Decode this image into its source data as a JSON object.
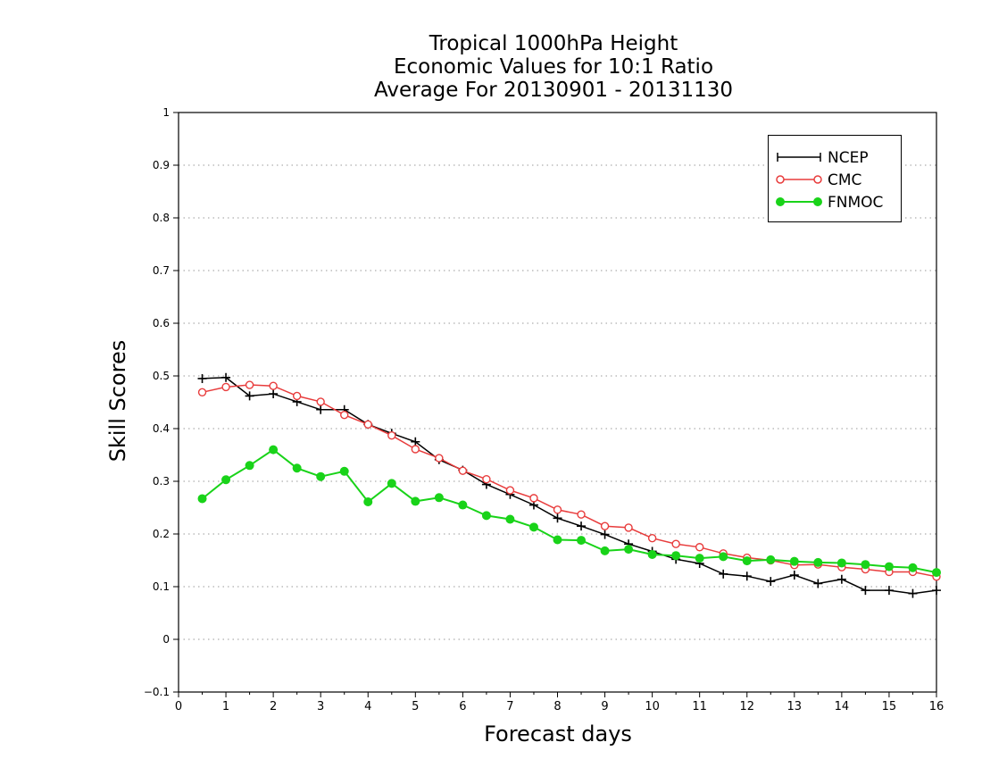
{
  "chart_data": {
    "type": "line",
    "title": [
      "Tropical 1000hPa Height",
      "Economic Values for 10:1 Ratio",
      "Average For 20130901 - 20131130"
    ],
    "xlabel": "Forecast days",
    "ylabel": "Skill Scores",
    "xlim": [
      0,
      16
    ],
    "ylim": [
      -0.1,
      1
    ],
    "xticks": [
      "0",
      "1",
      "2",
      "3",
      "4",
      "5",
      "6",
      "7",
      "8",
      "9",
      "10",
      "11",
      "12",
      "13",
      "14",
      "15",
      "16"
    ],
    "yticks": [
      "−0.1",
      "0",
      "0.1",
      "0.2",
      "0.3",
      "0.4",
      "0.5",
      "0.6",
      "0.7",
      "0.8",
      "0.9",
      "1"
    ],
    "grid": "horizontal dotted",
    "legend_position": "top-right",
    "x": [
      0.5,
      1,
      1.5,
      2,
      2.5,
      3,
      3.5,
      4,
      4.5,
      5,
      5.5,
      6,
      6.5,
      7,
      7.5,
      8,
      8.5,
      9,
      9.5,
      10,
      10.5,
      11,
      11.5,
      12,
      12.5,
      13,
      13.5,
      14,
      14.5,
      15,
      15.5,
      16
    ],
    "series": [
      {
        "name": "NCEP",
        "color": "#000000",
        "marker": "plus",
        "values": [
          0.495,
          0.497,
          0.462,
          0.466,
          0.451,
          0.436,
          0.436,
          0.408,
          0.391,
          0.375,
          0.341,
          0.321,
          0.294,
          0.275,
          0.255,
          0.23,
          0.215,
          0.199,
          0.181,
          0.167,
          0.152,
          0.144,
          0.124,
          0.12,
          0.11,
          0.122,
          0.106,
          0.114,
          0.093,
          0.093,
          0.087,
          0.093
        ]
      },
      {
        "name": "CMC",
        "color": "#e83c3c",
        "marker": "open-circle",
        "values": [
          0.469,
          0.479,
          0.483,
          0.481,
          0.462,
          0.451,
          0.426,
          0.408,
          0.387,
          0.361,
          0.344,
          0.32,
          0.304,
          0.283,
          0.268,
          0.246,
          0.237,
          0.215,
          0.212,
          0.192,
          0.181,
          0.175,
          0.163,
          0.155,
          0.15,
          0.141,
          0.142,
          0.137,
          0.133,
          0.128,
          0.128,
          0.119
        ]
      },
      {
        "name": "FNMOC",
        "color": "#19d319",
        "marker": "filled-circle",
        "values": [
          0.267,
          0.303,
          0.33,
          0.36,
          0.325,
          0.309,
          0.319,
          0.261,
          0.296,
          0.262,
          0.269,
          0.255,
          0.235,
          0.228,
          0.213,
          0.189,
          0.188,
          0.168,
          0.171,
          0.161,
          0.159,
          0.154,
          0.157,
          0.149,
          0.151,
          0.148,
          0.146,
          0.145,
          0.142,
          0.138,
          0.136,
          0.127
        ]
      }
    ]
  }
}
